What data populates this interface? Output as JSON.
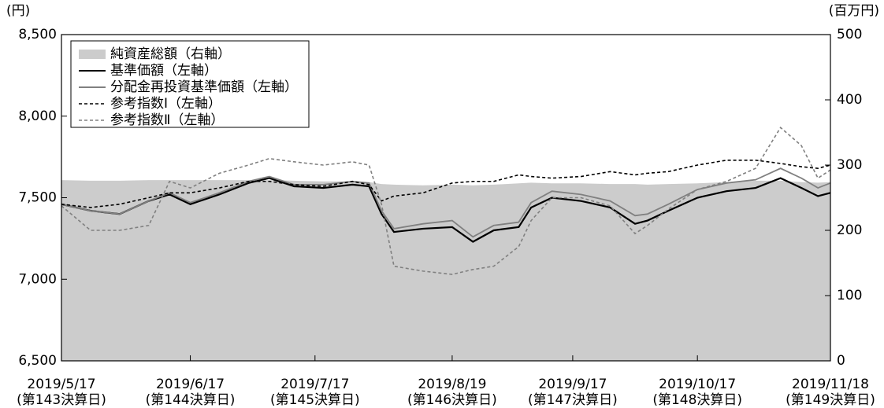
{
  "chart_data": {
    "type": "line",
    "y_label": "(円)",
    "y2_label": "(百万円)",
    "x": [
      "2019-05-17",
      "2019-05-24",
      "2019-05-31",
      "2019-06-07",
      "2019-06-12",
      "2019-06-17",
      "2019-06-24",
      "2019-07-01",
      "2019-07-06",
      "2019-07-12",
      "2019-07-19",
      "2019-07-26",
      "2019-07-30",
      "2019-08-02",
      "2019-08-05",
      "2019-08-12",
      "2019-08-19",
      "2019-08-24",
      "2019-08-29",
      "2019-09-04",
      "2019-09-07",
      "2019-09-12",
      "2019-09-19",
      "2019-09-26",
      "2019-10-02",
      "2019-10-05",
      "2019-10-10",
      "2019-10-17",
      "2019-10-24",
      "2019-10-31",
      "2019-11-06",
      "2019-11-11",
      "2019-11-15",
      "2019-11-18"
    ],
    "series": [
      {
        "name": "純資産総額（右軸）",
        "type": "area",
        "axis": "y2",
        "color": "#cccccc",
        "values": [
          277,
          276,
          276,
          277,
          277,
          277,
          277,
          277,
          277,
          276,
          275,
          275,
          274,
          271,
          270,
          269,
          270,
          269,
          270,
          272,
          273,
          272,
          272,
          271,
          271,
          270,
          271,
          272,
          274,
          276,
          276,
          274,
          273,
          274
        ]
      },
      {
        "name": "基準価額（左軸）",
        "type": "line",
        "color": "#000000",
        "dash": false,
        "values": [
          7460,
          7420,
          7400,
          7480,
          7520,
          7460,
          7520,
          7590,
          7620,
          7570,
          7560,
          7580,
          7570,
          7400,
          7290,
          7310,
          7320,
          7230,
          7300,
          7320,
          7440,
          7500,
          7480,
          7440,
          7340,
          7360,
          7420,
          7500,
          7540,
          7560,
          7620,
          7560,
          7510,
          7530
        ]
      },
      {
        "name": "分配金再投資基準価額（左軸）",
        "type": "line",
        "color": "#808080",
        "dash": false,
        "values": [
          7460,
          7420,
          7400,
          7480,
          7530,
          7470,
          7530,
          7600,
          7630,
          7580,
          7580,
          7600,
          7590,
          7420,
          7310,
          7340,
          7360,
          7260,
          7330,
          7350,
          7470,
          7540,
          7520,
          7480,
          7390,
          7400,
          7460,
          7550,
          7590,
          7610,
          7680,
          7620,
          7560,
          7590
        ]
      },
      {
        "name": "参考指数Ⅰ（左軸）",
        "type": "line",
        "color": "#000000",
        "dash": true,
        "values": [
          7460,
          7440,
          7460,
          7500,
          7530,
          7530,
          7560,
          7600,
          7600,
          7580,
          7570,
          7600,
          7580,
          7480,
          7510,
          7530,
          7590,
          7600,
          7600,
          7640,
          7630,
          7620,
          7630,
          7660,
          7640,
          7650,
          7660,
          7700,
          7730,
          7730,
          7710,
          7690,
          7680,
          7700
        ]
      },
      {
        "name": "参考指数Ⅱ（左軸）",
        "type": "line",
        "color": "#808080",
        "dash": true,
        "values": [
          7450,
          7300,
          7300,
          7330,
          7600,
          7560,
          7650,
          7700,
          7740,
          7720,
          7700,
          7720,
          7700,
          7460,
          7080,
          7050,
          7030,
          7060,
          7080,
          7200,
          7360,
          7500,
          7500,
          7450,
          7280,
          7330,
          7430,
          7550,
          7600,
          7680,
          7930,
          7820,
          7620,
          7670
        ]
      }
    ],
    "xlim": [
      "2019-05-17",
      "2019-11-18"
    ],
    "xticks": [
      {
        "value": "2019-05-17",
        "label": [
          "2019/5/17",
          "(第143決算日)"
        ]
      },
      {
        "value": "2019-06-17",
        "label": [
          "2019/6/17",
          "(第144決算日)"
        ]
      },
      {
        "value": "2019-07-17",
        "label": [
          "2019/7/17",
          "(第145決算日)"
        ]
      },
      {
        "value": "2019-08-19",
        "label": [
          "2019/8/19",
          "(第146決算日)"
        ]
      },
      {
        "value": "2019-09-17",
        "label": [
          "2019/9/17",
          "(第147決算日)"
        ]
      },
      {
        "value": "2019-10-17",
        "label": [
          "2019/10/17",
          "(第148決算日)"
        ]
      },
      {
        "value": "2019-11-18",
        "label": [
          "2019/11/18",
          "(第149決算日)"
        ]
      }
    ],
    "ylim": [
      6500,
      8500
    ],
    "yticks": [
      {
        "value": 6500,
        "label": "6,500"
      },
      {
        "value": 7000,
        "label": "7,000"
      },
      {
        "value": 7500,
        "label": "7,500"
      },
      {
        "value": 8000,
        "label": "8,000"
      },
      {
        "value": 8500,
        "label": "8,500"
      }
    ],
    "y2lim": [
      0,
      500
    ],
    "y2ticks": [
      0,
      100,
      200,
      300,
      400,
      500
    ],
    "legend": "top-left"
  }
}
